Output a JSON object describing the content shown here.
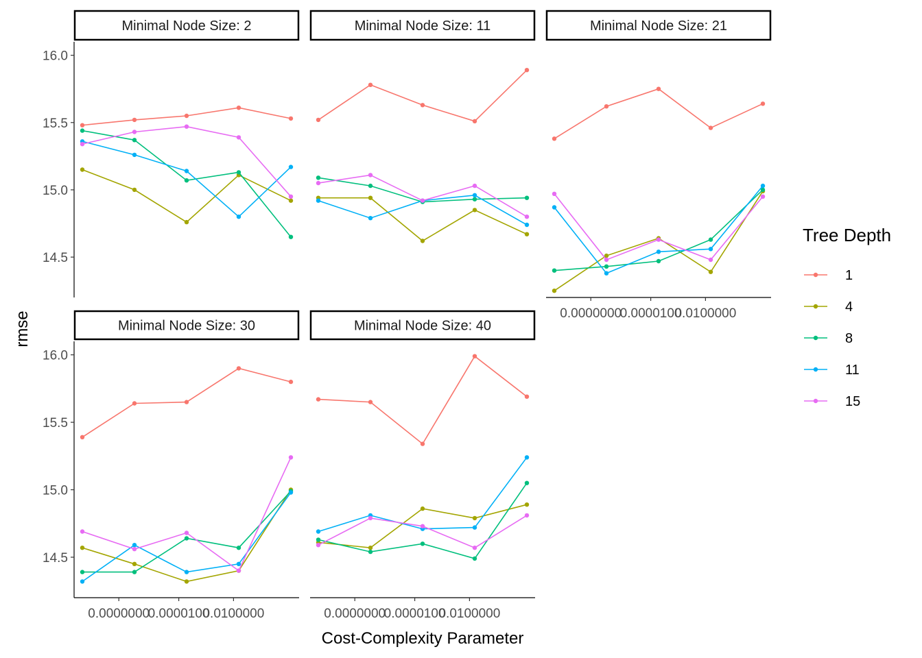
{
  "chart_data": {
    "type": "line",
    "xlabel": "Cost-Complexity Parameter",
    "ylabel": "rmse",
    "x": [
      0,
      1,
      2,
      3,
      4
    ],
    "x_tick_labels": [
      "0.0000000",
      "0.0000100",
      "0.0100000"
    ],
    "x_tick_positions": [
      0.7,
      1.85,
      2.9
    ],
    "y_ticks": [
      14.5,
      15.0,
      15.5,
      16.0
    ],
    "y_tick_labels": [
      "14.5",
      "15.0",
      "15.5",
      "16.0"
    ],
    "ylim": [
      14.2,
      16.1
    ],
    "grid": false,
    "legend": {
      "title": "Tree Depth",
      "placement": "right",
      "entries": [
        {
          "label": "1",
          "color": "#F8766D"
        },
        {
          "label": "4",
          "color": "#A3A500"
        },
        {
          "label": "8",
          "color": "#00BF7D"
        },
        {
          "label": "11",
          "color": "#00B0F6"
        },
        {
          "label": "15",
          "color": "#E76BF3"
        }
      ]
    },
    "facets": [
      {
        "strip": "Minimal Node Size: 2",
        "series": [
          {
            "name": "1",
            "values": [
              15.48,
              15.52,
              15.55,
              15.61,
              15.53
            ]
          },
          {
            "name": "4",
            "values": [
              15.15,
              15.0,
              14.76,
              15.11,
              14.92
            ]
          },
          {
            "name": "8",
            "values": [
              15.44,
              15.37,
              15.07,
              15.13,
              14.65
            ]
          },
          {
            "name": "11",
            "values": [
              15.36,
              15.26,
              15.14,
              14.8,
              15.17
            ]
          },
          {
            "name": "15",
            "values": [
              15.34,
              15.43,
              15.47,
              15.39,
              14.95
            ]
          }
        ]
      },
      {
        "strip": "Minimal Node Size: 11",
        "series": [
          {
            "name": "1",
            "values": [
              15.52,
              15.78,
              15.63,
              15.51,
              15.89
            ]
          },
          {
            "name": "4",
            "values": [
              14.94,
              14.94,
              14.62,
              14.85,
              14.67
            ]
          },
          {
            "name": "8",
            "values": [
              15.09,
              15.03,
              14.91,
              14.93,
              14.94
            ]
          },
          {
            "name": "11",
            "values": [
              14.92,
              14.79,
              14.92,
              14.96,
              14.74
            ]
          },
          {
            "name": "15",
            "values": [
              15.05,
              15.11,
              14.92,
              15.03,
              14.8
            ]
          }
        ]
      },
      {
        "strip": "Minimal Node Size: 21",
        "series": [
          {
            "name": "1",
            "values": [
              15.38,
              15.62,
              15.75,
              15.46,
              15.64
            ]
          },
          {
            "name": "4",
            "values": [
              14.25,
              14.51,
              14.64,
              14.39,
              14.99
            ]
          },
          {
            "name": "8",
            "values": [
              14.4,
              14.43,
              14.47,
              14.63,
              15.0
            ]
          },
          {
            "name": "11",
            "values": [
              14.87,
              14.38,
              14.54,
              14.56,
              15.03
            ]
          },
          {
            "name": "15",
            "values": [
              14.97,
              14.48,
              14.63,
              14.48,
              14.95
            ]
          }
        ]
      },
      {
        "strip": "Minimal Node Size: 30",
        "series": [
          {
            "name": "1",
            "values": [
              15.39,
              15.64,
              15.65,
              15.9,
              15.8
            ]
          },
          {
            "name": "4",
            "values": [
              14.57,
              14.45,
              14.32,
              14.4,
              15.0
            ]
          },
          {
            "name": "8",
            "values": [
              14.39,
              14.39,
              14.64,
              14.57,
              14.99
            ]
          },
          {
            "name": "11",
            "values": [
              14.32,
              14.59,
              14.39,
              14.45,
              14.98
            ]
          },
          {
            "name": "15",
            "values": [
              14.69,
              14.56,
              14.68,
              14.4,
              15.24
            ]
          }
        ]
      },
      {
        "strip": "Minimal Node Size: 40",
        "series": [
          {
            "name": "1",
            "values": [
              15.67,
              15.65,
              15.34,
              15.99,
              15.69
            ]
          },
          {
            "name": "4",
            "values": [
              14.61,
              14.57,
              14.86,
              14.79,
              14.89
            ]
          },
          {
            "name": "8",
            "values": [
              14.63,
              14.54,
              14.6,
              14.49,
              15.05
            ]
          },
          {
            "name": "11",
            "values": [
              14.69,
              14.81,
              14.71,
              14.72,
              15.24
            ]
          },
          {
            "name": "15",
            "values": [
              14.59,
              14.79,
              14.73,
              14.57,
              14.81
            ]
          }
        ]
      }
    ]
  }
}
